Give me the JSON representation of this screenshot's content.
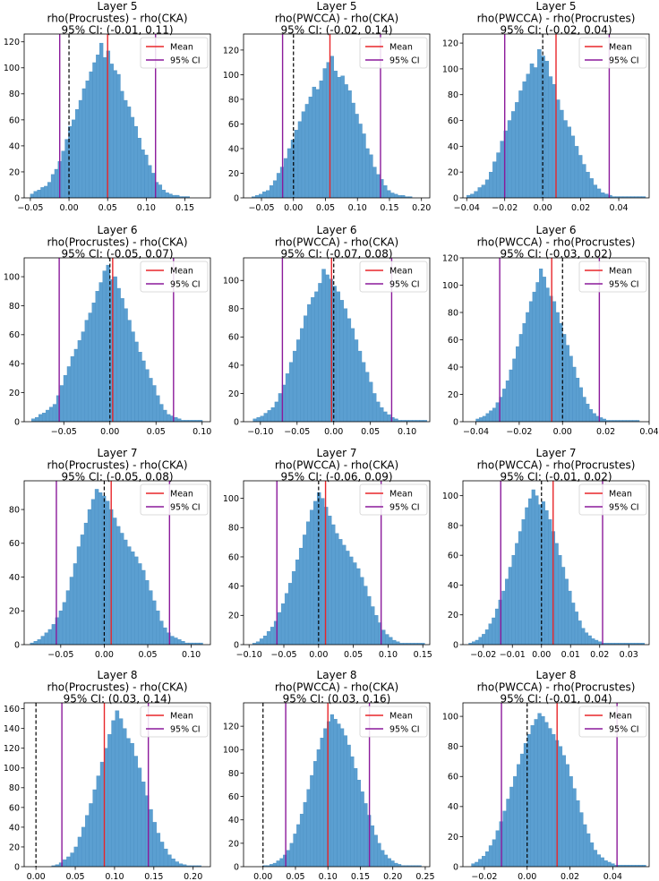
{
  "legend": {
    "mean_label": "Mean",
    "ci_label": "95% CI"
  },
  "colors": {
    "bar": "#5b9fd1",
    "bar_edge": "#4a8fc2",
    "mean": "#e8262a",
    "ci": "#8b1a9b",
    "zero": "#000000"
  },
  "chart_data": [
    {
      "type": "bar",
      "title": [
        "Layer 5",
        "rho(Procrustes) - rho(CKA)",
        "95% CI: (-0.01, 0.11)"
      ],
      "xlim": [
        -0.058,
        0.183
      ],
      "ylim": [
        0,
        126
      ],
      "xticks": [
        -0.05,
        0.0,
        0.05,
        0.1,
        0.15
      ],
      "xtick_labels": [
        "−0.05",
        "0.00",
        "0.05",
        "0.10",
        "0.15"
      ],
      "yticks": [
        0,
        20,
        40,
        60,
        80,
        100,
        120
      ],
      "mean": 0.05,
      "ci": [
        -0.012,
        0.112
      ],
      "bins": {
        "start": -0.05,
        "width": 0.00448,
        "counts": [
          3,
          5,
          6,
          8,
          9,
          12,
          18,
          22,
          28,
          36,
          45,
          55,
          60,
          68,
          75,
          84,
          90,
          97,
          104,
          110,
          119,
          108,
          113,
          103,
          98,
          95,
          82,
          75,
          70,
          62,
          55,
          46,
          37,
          33,
          25,
          19,
          12,
          10,
          6,
          4,
          3,
          2,
          2,
          1,
          1,
          1
        ]
      }
    },
    {
      "type": "bar",
      "title": [
        "Layer 5",
        "rho(PWCCA) - rho(CKA)",
        "95% CI: (-0.02, 0.14)"
      ],
      "xlim": [
        -0.078,
        0.213
      ],
      "ylim": [
        0,
        133
      ],
      "xticks": [
        -0.05,
        0.0,
        0.05,
        0.1,
        0.15,
        0.2
      ],
      "xtick_labels": [
        "−0.05",
        "0.00",
        "0.05",
        "0.10",
        "0.15",
        "0.20"
      ],
      "yticks": [
        0,
        20,
        40,
        60,
        80,
        100,
        120
      ],
      "mean": 0.057,
      "ci": [
        -0.017,
        0.136
      ],
      "bins": {
        "start": -0.065,
        "width": 0.00556,
        "counts": [
          1,
          2,
          3,
          5,
          6,
          10,
          14,
          20,
          25,
          32,
          40,
          47,
          55,
          62,
          70,
          76,
          82,
          90,
          88,
          95,
          105,
          110,
          115,
          103,
          98,
          99,
          92,
          87,
          77,
          68,
          60,
          52,
          40,
          35,
          25,
          19,
          15,
          10,
          6,
          4,
          3,
          2,
          2,
          1,
          1
        ]
      }
    },
    {
      "type": "bar",
      "title": [
        "Layer 5",
        "rho(PWCCA) - rho(Procrustes)",
        "95% CI: (-0.02, 0.04)"
      ],
      "xlim": [
        -0.042,
        0.056
      ],
      "ylim": [
        0,
        127
      ],
      "xticks": [
        -0.04,
        -0.02,
        0.0,
        0.02,
        0.04
      ],
      "xtick_labels": [
        "−0.04",
        "−0.02",
        "0.00",
        "0.02",
        "0.04"
      ],
      "yticks": [
        0,
        20,
        40,
        60,
        80,
        100,
        120
      ],
      "mean": 0.007,
      "ci": [
        -0.02,
        0.035
      ],
      "bins": {
        "start": -0.04,
        "width": 0.00196,
        "counts": [
          2,
          3,
          5,
          8,
          10,
          14,
          20,
          28,
          35,
          44,
          52,
          60,
          67,
          74,
          83,
          90,
          96,
          104,
          101,
          115,
          110,
          106,
          94,
          88,
          76,
          68,
          60,
          55,
          48,
          40,
          33,
          26,
          20,
          15,
          10,
          7,
          4,
          3,
          2,
          1,
          1,
          1,
          1,
          1,
          1,
          1,
          1,
          1
        ]
      }
    },
    {
      "type": "bar",
      "title": [
        "Layer 6",
        "rho(Procrustes) - rho(CKA)",
        "95% CI: (-0.05, 0.07)"
      ],
      "xlim": [
        -0.093,
        0.109
      ],
      "ylim": [
        0,
        113
      ],
      "xticks": [
        -0.05,
        0.0,
        0.05,
        0.1
      ],
      "xtick_labels": [
        "−0.05",
        "0.00",
        "0.05",
        "0.10"
      ],
      "yticks": [
        0,
        20,
        40,
        60,
        80,
        100
      ],
      "mean": 0.003,
      "ci": [
        -0.055,
        0.069
      ],
      "bins": {
        "start": -0.085,
        "width": 0.00386,
        "counts": [
          2,
          3,
          5,
          6,
          8,
          10,
          12,
          18,
          25,
          32,
          38,
          45,
          50,
          56,
          62,
          70,
          75,
          82,
          90,
          96,
          104,
          108,
          98,
          100,
          92,
          85,
          78,
          70,
          62,
          55,
          48,
          42,
          36,
          30,
          25,
          18,
          12,
          8,
          5,
          4,
          3,
          2,
          1,
          1,
          1,
          1,
          1,
          1
        ]
      }
    },
    {
      "type": "bar",
      "title": [
        "Layer 6",
        "rho(PWCCA) - rho(CKA)",
        "95% CI: (-0.07, 0.08)"
      ],
      "xlim": [
        -0.123,
        0.131
      ],
      "ylim": [
        0,
        116
      ],
      "xticks": [
        -0.1,
        -0.05,
        0.0,
        0.05,
        0.1
      ],
      "xtick_labels": [
        "−0.10",
        "−0.05",
        "0.00",
        "0.05",
        "0.10"
      ],
      "yticks": [
        0,
        20,
        40,
        60,
        80,
        100
      ],
      "mean": -0.003,
      "ci": [
        -0.07,
        0.079
      ],
      "bins": {
        "start": -0.11,
        "width": 0.00494,
        "counts": [
          2,
          3,
          4,
          6,
          8,
          10,
          14,
          20,
          26,
          34,
          42,
          50,
          58,
          66,
          75,
          83,
          88,
          92,
          98,
          108,
          104,
          101,
          96,
          92,
          86,
          80,
          73,
          66,
          58,
          50,
          42,
          35,
          28,
          20,
          14,
          10,
          7,
          5,
          3,
          2,
          1,
          1,
          1,
          1,
          1,
          1,
          1,
          1
        ]
      }
    },
    {
      "type": "bar",
      "title": [
        "Layer 6",
        "rho(PWCCA) - rho(Procrustes)",
        "95% CI: (-0.03, 0.02)"
      ],
      "xlim": [
        -0.046,
        0.04
      ],
      "ylim": [
        0,
        120
      ],
      "xticks": [
        -0.04,
        -0.02,
        0.0,
        0.02,
        0.04
      ],
      "xtick_labels": [
        "−0.04",
        "−0.02",
        "0.00",
        "0.02",
        "0.04"
      ],
      "yticks": [
        0,
        20,
        40,
        60,
        80,
        100,
        120
      ],
      "mean": -0.005,
      "ci": [
        -0.029,
        0.017
      ],
      "bins": {
        "start": -0.04,
        "width": 0.00154,
        "counts": [
          2,
          3,
          4,
          6,
          8,
          10,
          14,
          18,
          24,
          30,
          38,
          46,
          55,
          64,
          72,
          80,
          88,
          95,
          102,
          112,
          106,
          98,
          92,
          88,
          80,
          72,
          64,
          56,
          48,
          40,
          32,
          25,
          18,
          13,
          9,
          6,
          4,
          3,
          2,
          1,
          1,
          1,
          1,
          1,
          1,
          1,
          1,
          1,
          1
        ]
      }
    },
    {
      "type": "bar",
      "title": [
        "Layer 7",
        "rho(Procrustes) - rho(CKA)",
        "95% CI: (-0.05, 0.08)"
      ],
      "xlim": [
        -0.092,
        0.122
      ],
      "ylim": [
        0,
        97
      ],
      "xticks": [
        -0.05,
        0.0,
        0.05,
        0.1
      ],
      "xtick_labels": [
        "−0.05",
        "0.00",
        "0.05",
        "0.10"
      ],
      "yticks": [
        0,
        20,
        40,
        60,
        80
      ],
      "mean": 0.008,
      "ci": [
        -0.055,
        0.075
      ],
      "bins": {
        "start": -0.085,
        "width": 0.00413,
        "counts": [
          1,
          2,
          3,
          5,
          7,
          9,
          12,
          16,
          20,
          25,
          32,
          40,
          48,
          58,
          65,
          72,
          80,
          86,
          92,
          90,
          88,
          85,
          80,
          75,
          70,
          66,
          62,
          58,
          55,
          52,
          48,
          44,
          38,
          32,
          26,
          20,
          14,
          10,
          7,
          5,
          4,
          3,
          2,
          1,
          1,
          1,
          1,
          1
        ]
      }
    },
    {
      "type": "bar",
      "title": [
        "Layer 7",
        "rho(PWCCA) - rho(CKA)",
        "95% CI: (-0.06, 0.09)"
      ],
      "xlim": [
        -0.108,
        0.16
      ],
      "ylim": [
        0,
        112
      ],
      "xticks": [
        -0.1,
        -0.05,
        0.0,
        0.05,
        0.1,
        0.15
      ],
      "xtick_labels": [
        "−0.10",
        "−0.05",
        "0.00",
        "0.05",
        "0.10",
        "0.15"
      ],
      "yticks": [
        0,
        20,
        40,
        60,
        80,
        100
      ],
      "mean": 0.01,
      "ci": [
        -0.06,
        0.09
      ],
      "bins": {
        "start": -0.095,
        "width": 0.00516,
        "counts": [
          1,
          2,
          4,
          6,
          9,
          12,
          16,
          22,
          28,
          35,
          42,
          50,
          58,
          66,
          75,
          84,
          92,
          98,
          104,
          100,
          94,
          88,
          82,
          76,
          72,
          68,
          64,
          60,
          56,
          52,
          46,
          40,
          33,
          26,
          20,
          15,
          10,
          7,
          5,
          3,
          2,
          1,
          1,
          1,
          1,
          1,
          1,
          1
        ]
      }
    },
    {
      "type": "bar",
      "title": [
        "Layer 7",
        "rho(PWCCA) - rho(Procrustes)",
        "95% CI: (-0.01, 0.02)"
      ],
      "xlim": [
        -0.027,
        0.037
      ],
      "ylim": [
        0,
        110
      ],
      "xticks": [
        -0.02,
        -0.01,
        0.0,
        0.01,
        0.02,
        0.03
      ],
      "xtick_labels": [
        "−0.02",
        "−0.01",
        "0.00",
        "0.01",
        "0.02",
        "0.03"
      ],
      "yticks": [
        0,
        20,
        40,
        60,
        80,
        100
      ],
      "mean": 0.004,
      "ci": [
        -0.014,
        0.021
      ],
      "bins": {
        "start": -0.025,
        "width": 0.00114,
        "counts": [
          1,
          2,
          3,
          5,
          7,
          10,
          14,
          18,
          24,
          30,
          36,
          44,
          52,
          60,
          68,
          76,
          84,
          92,
          98,
          104,
          100,
          94,
          96,
          90,
          84,
          76,
          68,
          60,
          52,
          44,
          36,
          28,
          22,
          16,
          11,
          8,
          6,
          4,
          3,
          2,
          1,
          1,
          1,
          1,
          1,
          1,
          1,
          1,
          1,
          1,
          1,
          1,
          1
        ]
      }
    },
    {
      "type": "bar",
      "title": [
        "Layer 8",
        "rho(Procrustes) - rho(CKA)",
        "95% CI: (0.03, 0.14)"
      ],
      "xlim": [
        -0.015,
        0.222
      ],
      "ylim": [
        0,
        166
      ],
      "xticks": [
        0.0,
        0.05,
        0.1,
        0.15,
        0.2
      ],
      "xtick_labels": [
        "0.00",
        "0.05",
        "0.10",
        "0.15",
        "0.20"
      ],
      "yticks": [
        0,
        20,
        40,
        60,
        80,
        100,
        120,
        140,
        160
      ],
      "mean": 0.087,
      "ci": [
        0.033,
        0.143
      ],
      "bins": {
        "start": 0.02,
        "width": 0.00476,
        "counts": [
          1,
          2,
          4,
          7,
          10,
          14,
          20,
          30,
          40,
          52,
          64,
          78,
          92,
          106,
          120,
          134,
          148,
          158,
          150,
          140,
          130,
          125,
          112,
          100,
          86,
          72,
          58,
          45,
          34,
          25,
          18,
          12,
          8,
          5,
          3,
          2,
          1,
          1,
          1,
          1
        ]
      }
    },
    {
      "type": "bar",
      "title": [
        "Layer 8",
        "rho(PWCCA) - rho(CKA)",
        "95% CI: (0.03, 0.16)"
      ],
      "xlim": [
        -0.03,
        0.257
      ],
      "ylim": [
        0,
        140
      ],
      "xticks": [
        0.0,
        0.05,
        0.1,
        0.15,
        0.2,
        0.25
      ],
      "xtick_labels": [
        "0.00",
        "0.05",
        "0.10",
        "0.15",
        "0.20",
        "0.25"
      ],
      "yticks": [
        0,
        20,
        40,
        60,
        80,
        100,
        120
      ],
      "mean": 0.1,
      "ci": [
        0.035,
        0.164
      ],
      "bins": {
        "start": 0.0,
        "width": 0.00519,
        "counts": [
          1,
          1,
          2,
          3,
          5,
          7,
          10,
          14,
          20,
          28,
          36,
          45,
          55,
          66,
          78,
          90,
          100,
          110,
          118,
          124,
          130,
          126,
          122,
          118,
          112,
          104,
          94,
          84,
          74,
          64,
          54,
          44,
          35,
          27,
          20,
          14,
          10,
          7,
          5,
          3,
          2,
          1,
          1,
          1,
          1,
          1,
          1
        ]
      }
    },
    {
      "type": "bar",
      "title": [
        "Layer 8",
        "rho(PWCCA) - rho(Procrustes)",
        "95% CI: (-0.01, 0.04)"
      ],
      "xlim": [
        -0.03,
        0.057
      ],
      "ylim": [
        0,
        109
      ],
      "xticks": [
        -0.02,
        0.0,
        0.02,
        0.04
      ],
      "xtick_labels": [
        "−0.02",
        "0.00",
        "0.02",
        "0.04"
      ],
      "yticks": [
        0,
        20,
        40,
        60,
        80,
        100
      ],
      "mean": 0.014,
      "ci": [
        -0.012,
        0.042
      ],
      "bins": {
        "start": -0.026,
        "width": 0.00163,
        "counts": [
          2,
          3,
          5,
          7,
          10,
          14,
          18,
          24,
          30,
          37,
          45,
          53,
          60,
          68,
          75,
          82,
          88,
          94,
          98,
          102,
          100,
          96,
          92,
          88,
          84,
          80,
          74,
          68,
          60,
          52,
          44,
          36,
          28,
          22,
          16,
          11,
          8,
          6,
          4,
          3,
          2,
          1,
          1,
          1,
          1,
          1,
          1,
          1,
          1,
          1
        ]
      }
    }
  ]
}
